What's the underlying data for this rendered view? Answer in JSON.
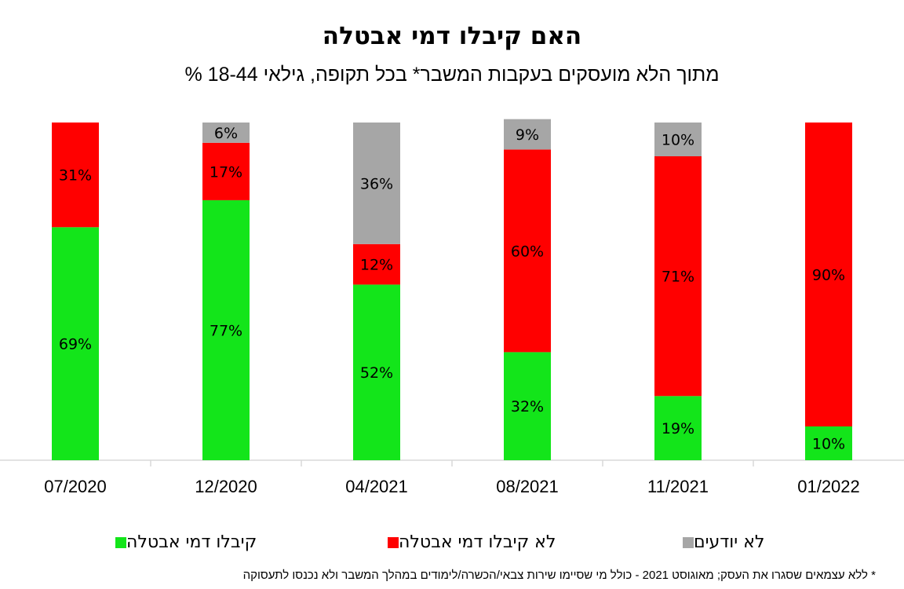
{
  "chart_data": {
    "type": "bar",
    "stacked": true,
    "title": "האם קיבלו דמי אבטלה",
    "subtitle": "% מתוך הלא מועסקים בעקבות המשבר* בכל תקופה, גילאי 18-44",
    "categories": [
      "07/2020",
      "12/2020",
      "04/2021",
      "08/2021",
      "11/2021",
      "01/2022"
    ],
    "series": [
      {
        "name": "קיבלו דמי אבטלה",
        "color": "#13E51A",
        "values": [
          69,
          77,
          52,
          32,
          19,
          10
        ],
        "labels": [
          "69%",
          "77%",
          "52%",
          "32%",
          "19%",
          "10%"
        ]
      },
      {
        "name": "לא קיבלו דמי אבטלה",
        "color": "#FF0000",
        "values": [
          31,
          17,
          12,
          60,
          71,
          90
        ],
        "labels": [
          "31%",
          "17%",
          "12%",
          "60%",
          "71%",
          "90%"
        ]
      },
      {
        "name": "לא יודעים",
        "color": "#A6A6A6",
        "values": [
          0,
          6,
          36,
          9,
          10,
          0
        ],
        "labels": [
          "",
          "6%",
          "36%",
          "9%",
          "10%",
          ""
        ]
      }
    ],
    "ylim": [
      0,
      100
    ],
    "grid": false,
    "legend_position": "bottom"
  },
  "footnote": "* ללא עצמאים שסגרו את העסק; מאוגוסט 2021 - כולל מי שסיימו שירות צבאי/הכשרה/לימודים במהלך המשבר ולא נכנסו לתעסוקה"
}
